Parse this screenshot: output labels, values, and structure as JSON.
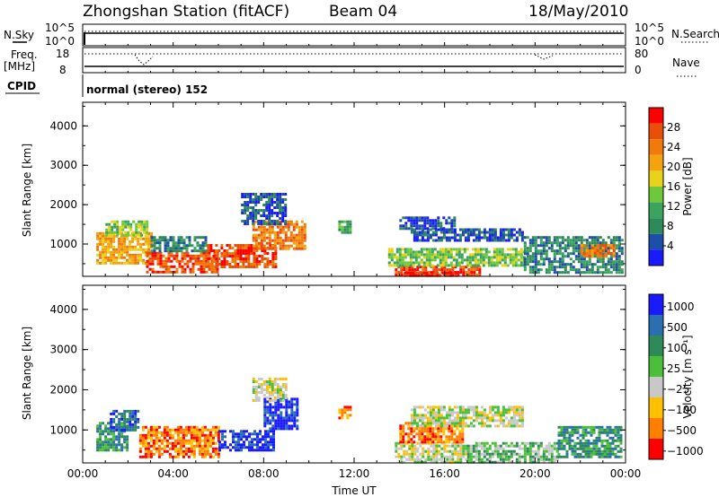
{
  "header": {
    "title": "Zhongshan Station (fitACF)",
    "beam": "Beam 04",
    "date": "18/May/2010"
  },
  "strip": {
    "nsky_label": "N.Sky",
    "nsky_ticks": [
      "10^5",
      "10^0"
    ],
    "nsearch_label": "N.Search",
    "nsearch_ticks": [
      "10^5",
      "10^0"
    ],
    "freq_label": "Freq.",
    "freq_unit": "[MHz]",
    "freq_ticks": [
      "18",
      "8"
    ],
    "nave_label": "Nave",
    "nave_ticks": [
      "80",
      "0"
    ],
    "cpid_label": "CPID",
    "mode_text": "normal (stereo) 152"
  },
  "colors": {
    "power": [
      "#1a1aff",
      "#1e4fa8",
      "#2f8a5a",
      "#3aa35e",
      "#6fc83c",
      "#e8d21a",
      "#f5a20f",
      "#f07a0a",
      "#e8500a",
      "#ff0000"
    ],
    "velocity": [
      "#ff0000",
      "#ff7f00",
      "#ffc000",
      "#c8c8c8",
      "#4cbf3a",
      "#2f8a5a",
      "#2a70b0",
      "#1a1aff"
    ]
  },
  "chart_data": [
    {
      "type": "heatmap",
      "name": "power",
      "xlabel": "",
      "ylabel": "Slant Range [km]",
      "xlim": [
        0,
        24
      ],
      "ylim": [
        180,
        4600
      ],
      "yticks": [
        "1000",
        "2000",
        "3000",
        "4000"
      ],
      "colorbar_label": "Power [dB]",
      "colorbar_ticks": [
        "4",
        "8",
        "12",
        "16",
        "20",
        "24",
        "28"
      ],
      "regions": [
        {
          "t0": 0.6,
          "t1": 3.0,
          "r0": 500,
          "r1": 1300,
          "level": 6
        },
        {
          "t0": 1.0,
          "t1": 2.8,
          "r0": 1200,
          "r1": 1600,
          "level": 4
        },
        {
          "t0": 2.8,
          "t1": 6.0,
          "r0": 300,
          "r1": 800,
          "level": 8
        },
        {
          "t0": 3.0,
          "t1": 5.5,
          "r0": 800,
          "r1": 1200,
          "level": 2
        },
        {
          "t0": 5.5,
          "t1": 8.5,
          "r0": 400,
          "r1": 1000,
          "level": 8
        },
        {
          "t0": 7.5,
          "t1": 9.8,
          "r0": 900,
          "r1": 1600,
          "level": 7
        },
        {
          "t0": 7.0,
          "t1": 9.0,
          "r0": 1500,
          "r1": 2300,
          "level": 1
        },
        {
          "t0": 11.3,
          "t1": 11.8,
          "r0": 1300,
          "r1": 1600,
          "level": 3
        },
        {
          "t0": 13.8,
          "t1": 17.5,
          "r0": 180,
          "r1": 450,
          "level": 8
        },
        {
          "t0": 14.2,
          "t1": 16.5,
          "r0": 180,
          "r1": 300,
          "level": 9
        },
        {
          "t0": 13.5,
          "t1": 19.5,
          "r0": 450,
          "r1": 900,
          "level": 4
        },
        {
          "t0": 14.5,
          "t1": 19.5,
          "r0": 1100,
          "r1": 1400,
          "level": 1
        },
        {
          "t0": 14.0,
          "t1": 16.5,
          "r0": 1400,
          "r1": 1700,
          "level": 1
        },
        {
          "t0": 19.5,
          "t1": 23.8,
          "r0": 300,
          "r1": 1200,
          "level": 2
        },
        {
          "t0": 22.0,
          "t1": 23.5,
          "r0": 700,
          "r1": 1000,
          "level": 7
        }
      ]
    },
    {
      "type": "heatmap",
      "name": "velocity",
      "xlabel": "Time UT",
      "ylabel": "Slant Range [km]",
      "xlim": [
        0,
        24
      ],
      "ylim": [
        180,
        4600
      ],
      "xticks": [
        "00:00",
        "04:00",
        "08:00",
        "12:00",
        "16:00",
        "20:00",
        "00:00"
      ],
      "yticks": [
        "1000",
        "2000",
        "3000",
        "4000"
      ],
      "colorbar_label": "Velocity [m s⁻¹]",
      "colorbar_ticks": [
        "1000",
        "500",
        "100",
        "25",
        "−25",
        "−100",
        "−500",
        "−1000"
      ],
      "regions": [
        {
          "t0": 0.6,
          "t1": 2.0,
          "r0": 500,
          "r1": 1200,
          "level": 5
        },
        {
          "t0": 1.2,
          "t1": 2.5,
          "r0": 1000,
          "r1": 1500,
          "level": 6
        },
        {
          "t0": 2.5,
          "t1": 6.0,
          "r0": 300,
          "r1": 1100,
          "level": 1
        },
        {
          "t0": 6.0,
          "t1": 8.5,
          "r0": 500,
          "r1": 1000,
          "level": 7
        },
        {
          "t0": 8.0,
          "t1": 9.5,
          "r0": 1000,
          "r1": 1800,
          "level": 7
        },
        {
          "t0": 7.5,
          "t1": 9.0,
          "r0": 1700,
          "r1": 2300,
          "level": 3
        },
        {
          "t0": 11.3,
          "t1": 11.8,
          "r0": 1300,
          "r1": 1600,
          "level": 1
        },
        {
          "t0": 13.8,
          "t1": 17.0,
          "r0": 200,
          "r1": 700,
          "level": 3
        },
        {
          "t0": 14.0,
          "t1": 16.8,
          "r0": 700,
          "r1": 1200,
          "level": 1
        },
        {
          "t0": 14.5,
          "t1": 19.5,
          "r0": 1100,
          "r1": 1600,
          "level": 3
        },
        {
          "t0": 17.0,
          "t1": 21.0,
          "r0": 200,
          "r1": 700,
          "level": 4
        },
        {
          "t0": 21.0,
          "t1": 23.8,
          "r0": 300,
          "r1": 1100,
          "level": 5
        }
      ]
    }
  ]
}
